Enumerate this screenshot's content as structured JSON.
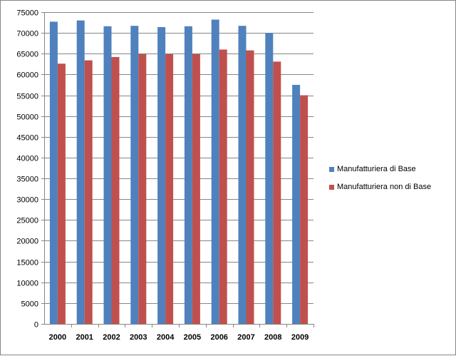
{
  "chart_data": {
    "type": "bar",
    "title": "",
    "xlabel": "",
    "ylabel": "",
    "categories": [
      "2000",
      "2001",
      "2002",
      "2003",
      "2004",
      "2005",
      "2006",
      "2007",
      "2008",
      "2009"
    ],
    "series": [
      {
        "name": "Manufatturiera di Base",
        "color": "#4F81BD",
        "values": [
          72700,
          73000,
          71600,
          71700,
          71400,
          71600,
          73200,
          71700,
          70000,
          57500
        ]
      },
      {
        "name": "Manufatturiera non di Base",
        "color": "#C0504D",
        "values": [
          62600,
          63400,
          64200,
          64900,
          64900,
          64900,
          66000,
          65800,
          63100,
          55000
        ]
      }
    ],
    "ylim": [
      0,
      75000
    ],
    "yticks": [
      "0",
      "5000",
      "10000",
      "15000",
      "20000",
      "25000",
      "30000",
      "35000",
      "40000",
      "45000",
      "50000",
      "55000",
      "60000",
      "65000",
      "70000",
      "75000"
    ],
    "grid": true,
    "legend": "right"
  }
}
